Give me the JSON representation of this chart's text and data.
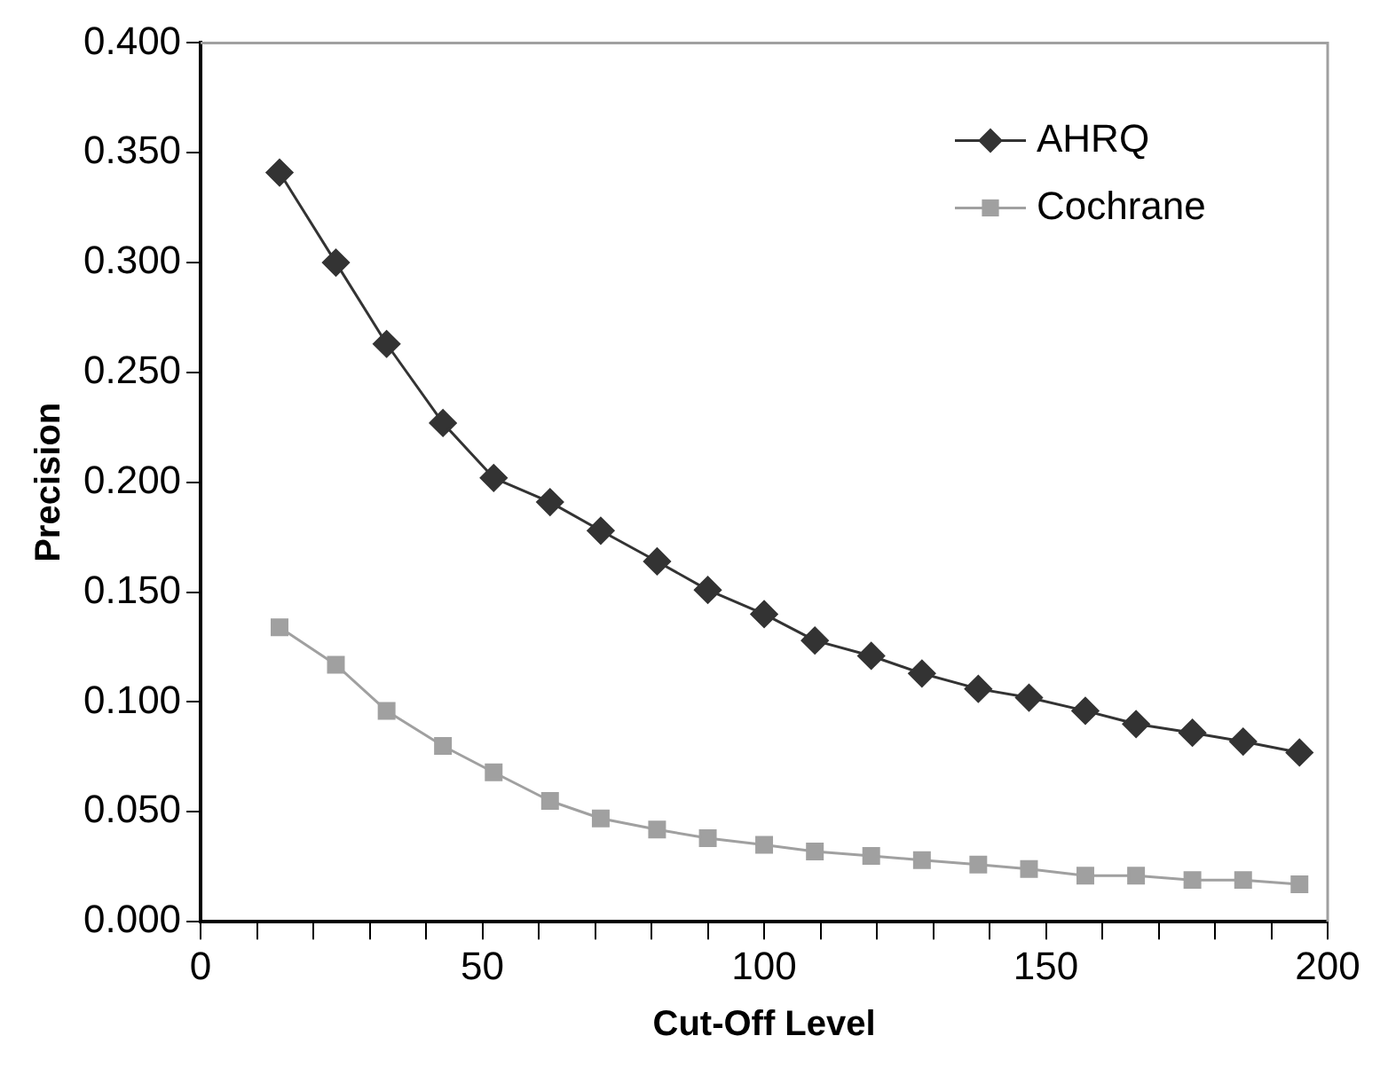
{
  "chart_data": {
    "type": "line",
    "xlabel": "Cut-Off Level",
    "ylabel": "Precision",
    "x": [
      14,
      24,
      33,
      43,
      52,
      62,
      71,
      81,
      90,
      100,
      109,
      119,
      128,
      138,
      147,
      157,
      166,
      176,
      185,
      195
    ],
    "series": [
      {
        "name": "AHRQ",
        "color": "#333333",
        "marker": "diamond",
        "values": [
          0.341,
          0.3,
          0.263,
          0.227,
          0.202,
          0.191,
          0.178,
          0.164,
          0.151,
          0.14,
          0.128,
          0.121,
          0.113,
          0.106,
          0.102,
          0.096,
          0.09,
          0.086,
          0.082,
          0.077
        ]
      },
      {
        "name": "Cochrane",
        "color": "#a0a0a0",
        "marker": "square",
        "values": [
          0.134,
          0.117,
          0.096,
          0.08,
          0.068,
          0.055,
          0.047,
          0.042,
          0.038,
          0.035,
          0.032,
          0.03,
          0.028,
          0.026,
          0.024,
          0.021,
          0.021,
          0.019,
          0.019,
          0.017
        ]
      }
    ],
    "xlim": [
      0,
      200
    ],
    "xticks": [
      0,
      {
        "value": 10,
        "label": null
      },
      {
        "value": 20,
        "label": null
      },
      {
        "value": 30,
        "label": null
      },
      {
        "value": 40,
        "label": null
      },
      50,
      {
        "value": 60,
        "label": null
      },
      {
        "value": 70,
        "label": null
      },
      {
        "value": 80,
        "label": null
      },
      {
        "value": 90,
        "label": null
      },
      100,
      {
        "value": 110,
        "label": null
      },
      {
        "value": 120,
        "label": null
      },
      {
        "value": 130,
        "label": null
      },
      {
        "value": 140,
        "label": null
      },
      150,
      {
        "value": 160,
        "label": null
      },
      {
        "value": 170,
        "label": null
      },
      {
        "value": 180,
        "label": null
      },
      {
        "value": 190,
        "label": null
      },
      200
    ],
    "ylim": [
      0,
      0.4
    ],
    "yticks": [
      {
        "value": 0,
        "label": "0.000"
      },
      {
        "value": 0.05,
        "label": "0.050"
      },
      {
        "value": 0.1,
        "label": "0.100"
      },
      {
        "value": 0.15,
        "label": "0.150"
      },
      {
        "value": 0.2,
        "label": "0.200"
      },
      {
        "value": 0.25,
        "label": "0.250"
      },
      {
        "value": 0.3,
        "label": "0.300"
      },
      {
        "value": 0.35,
        "label": "0.350"
      },
      {
        "value": 0.4,
        "label": "0.400"
      }
    ],
    "grid": false,
    "legend": "top right",
    "line_style": "solid"
  }
}
